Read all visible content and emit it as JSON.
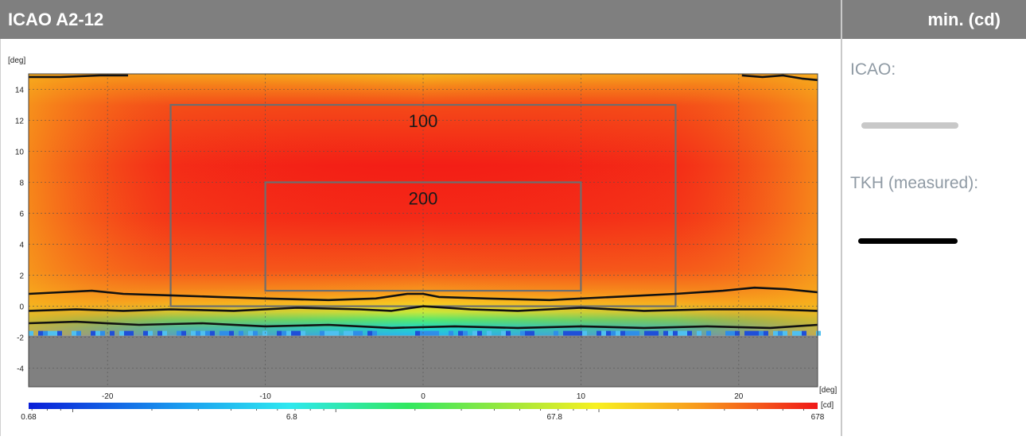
{
  "header": {
    "title": "ICAO A2-12",
    "min_label": "min. (cd)"
  },
  "legend": {
    "items": [
      {
        "label": "ICAO:",
        "color": "#c8c8c8"
      },
      {
        "label": "TKH (measured):",
        "color": "#000000"
      }
    ]
  },
  "chart_data": {
    "type": "heatmap",
    "xlabel": "[deg]",
    "ylabel": "[deg]",
    "xlim": [
      -25,
      25
    ],
    "ylim": [
      -5.2,
      15
    ],
    "xticks": [
      -20,
      -10,
      0,
      10,
      20
    ],
    "yticks": [
      -4,
      -2,
      0,
      2,
      4,
      6,
      8,
      10,
      12,
      14
    ],
    "grid": true,
    "icao_zones": [
      {
        "label": "100",
        "x": [
          -16,
          16
        ],
        "y": [
          0,
          13
        ]
      },
      {
        "label": "200",
        "x": [
          -10,
          10
        ],
        "y": [
          1,
          8
        ]
      }
    ],
    "contours": [
      {
        "name": "contour-top-left",
        "points": [
          [
            -25,
            14.8
          ],
          [
            -23,
            14.8
          ],
          [
            -20.5,
            14.9
          ],
          [
            -18.7,
            14.9
          ]
        ]
      },
      {
        "name": "contour-top-right",
        "points": [
          [
            20.2,
            14.9
          ],
          [
            21.5,
            14.8
          ],
          [
            22.8,
            14.9
          ],
          [
            24,
            14.7
          ],
          [
            25,
            14.6
          ]
        ]
      },
      {
        "name": "contour-upper",
        "points": [
          [
            -25,
            0.8
          ],
          [
            -23,
            0.9
          ],
          [
            -21,
            1.0
          ],
          [
            -19,
            0.8
          ],
          [
            -16,
            0.7
          ],
          [
            -13,
            0.6
          ],
          [
            -10,
            0.5
          ],
          [
            -6,
            0.4
          ],
          [
            -3,
            0.5
          ],
          [
            -1,
            0.8
          ],
          [
            0,
            0.8
          ],
          [
            1,
            0.6
          ],
          [
            4,
            0.5
          ],
          [
            8,
            0.4
          ],
          [
            12,
            0.6
          ],
          [
            16,
            0.8
          ],
          [
            19,
            1.0
          ],
          [
            21,
            1.2
          ],
          [
            23,
            1.1
          ],
          [
            25,
            0.9
          ]
        ]
      },
      {
        "name": "contour-middle",
        "points": [
          [
            -25,
            -0.3
          ],
          [
            -22,
            -0.2
          ],
          [
            -19,
            -0.3
          ],
          [
            -16,
            -0.2
          ],
          [
            -12,
            -0.3
          ],
          [
            -8,
            -0.1
          ],
          [
            -4,
            -0.2
          ],
          [
            -2,
            -0.3
          ],
          [
            0,
            0.0
          ],
          [
            3,
            -0.2
          ],
          [
            6,
            -0.3
          ],
          [
            10,
            -0.1
          ],
          [
            14,
            -0.3
          ],
          [
            18,
            -0.2
          ],
          [
            22,
            -0.2
          ],
          [
            25,
            -0.3
          ]
        ]
      },
      {
        "name": "contour-lower",
        "points": [
          [
            -25,
            -1.1
          ],
          [
            -22,
            -1.0
          ],
          [
            -18,
            -1.2
          ],
          [
            -14,
            -1.1
          ],
          [
            -10,
            -1.3
          ],
          [
            -6,
            -1.2
          ],
          [
            -2,
            -1.4
          ],
          [
            2,
            -1.3
          ],
          [
            6,
            -1.4
          ],
          [
            10,
            -1.3
          ],
          [
            14,
            -1.4
          ],
          [
            18,
            -1.3
          ],
          [
            22,
            -1.4
          ],
          [
            25,
            -1.2
          ]
        ]
      }
    ],
    "no_data_below_deg": -1.9,
    "colorscale": {
      "labels": [
        "0.68",
        "6.8",
        "67.8",
        "678"
      ],
      "unit": "[cd]",
      "min": 0.68,
      "max": 678,
      "scale": "log"
    }
  }
}
